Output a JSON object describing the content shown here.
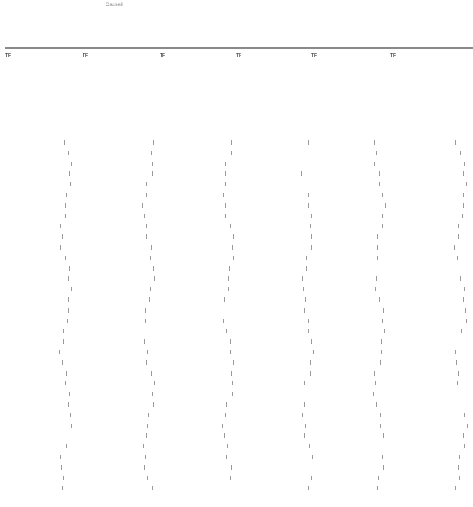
{
  "header": {
    "label": "Cassell",
    "ref": "",
    "markers": [
      "",
      "",
      "",
      "",
      "",
      ""
    ],
    "values": [
      "",
      "",
      "",
      "",
      "",
      ""
    ]
  },
  "columns": [
    {
      "label": "",
      "tag": "TF",
      "values": [
        "",
        "",
        "",
        "",
        "",
        ""
      ],
      "glyph": ""
    },
    {
      "label": "",
      "tag": "TF",
      "values": [
        "",
        "",
        "",
        "",
        "",
        ""
      ],
      "glyph": ""
    },
    {
      "label": "",
      "tag": "TF",
      "values": [
        "",
        "",
        "",
        "",
        "",
        ""
      ],
      "glyph": ""
    },
    {
      "label": "",
      "tag": "TF",
      "values": [
        "",
        "",
        "",
        "",
        "",
        ""
      ],
      "glyph": ""
    },
    {
      "label": "",
      "tag": "TF",
      "values": [
        "",
        "",
        "",
        "",
        "",
        ""
      ],
      "glyph": ""
    },
    {
      "label": "",
      "tag": "TF",
      "values": [
        "",
        "",
        "",
        "",
        "",
        ""
      ],
      "glyph": ""
    }
  ],
  "title": ""
}
